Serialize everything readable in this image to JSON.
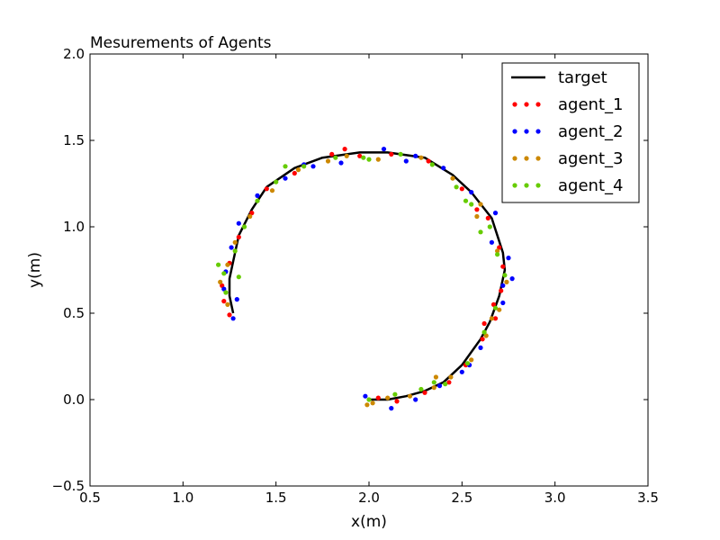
{
  "chart_data": {
    "type": "scatter",
    "title": "Mesurements of Agents",
    "xlabel": "x(m)",
    "ylabel": "y(m)",
    "xlim": [
      0.5,
      3.5
    ],
    "ylim": [
      -0.5,
      2.0
    ],
    "xticks": [
      "0.5",
      "1.0",
      "1.5",
      "2.0",
      "2.5",
      "3.0",
      "3.5"
    ],
    "yticks": [
      "−0.5",
      "0.0",
      "0.5",
      "1.0",
      "1.5",
      "2.0"
    ],
    "grid": false,
    "legend_position": "top-right",
    "series": [
      {
        "name": "target",
        "kind": "line",
        "color": "#000000",
        "points": [
          [
            2.0,
            0.0
          ],
          [
            2.1,
            0.0
          ],
          [
            2.2,
            0.02
          ],
          [
            2.3,
            0.05
          ],
          [
            2.4,
            0.1
          ],
          [
            2.5,
            0.2
          ],
          [
            2.6,
            0.35
          ],
          [
            2.65,
            0.45
          ],
          [
            2.7,
            0.6
          ],
          [
            2.73,
            0.75
          ],
          [
            2.72,
            0.85
          ],
          [
            2.66,
            1.05
          ],
          [
            2.55,
            1.2
          ],
          [
            2.45,
            1.3
          ],
          [
            2.3,
            1.4
          ],
          [
            2.1,
            1.43
          ],
          [
            1.95,
            1.43
          ],
          [
            1.75,
            1.4
          ],
          [
            1.6,
            1.34
          ],
          [
            1.45,
            1.23
          ],
          [
            1.37,
            1.1
          ],
          [
            1.3,
            0.95
          ],
          [
            1.27,
            0.8
          ],
          [
            1.25,
            0.7
          ],
          [
            1.25,
            0.6
          ],
          [
            1.27,
            0.5
          ]
        ]
      },
      {
        "name": "agent_1",
        "kind": "scatter",
        "color": "#ff0000",
        "points": [
          [
            2.05,
            0.01
          ],
          [
            2.15,
            -0.01
          ],
          [
            2.3,
            0.04
          ],
          [
            2.43,
            0.1
          ],
          [
            2.52,
            0.2
          ],
          [
            2.61,
            0.35
          ],
          [
            2.68,
            0.47
          ],
          [
            2.71,
            0.63
          ],
          [
            2.72,
            0.77
          ],
          [
            2.7,
            0.88
          ],
          [
            2.64,
            1.05
          ],
          [
            2.5,
            1.22
          ],
          [
            2.32,
            1.38
          ],
          [
            2.12,
            1.42
          ],
          [
            1.95,
            1.41
          ],
          [
            1.8,
            1.42
          ],
          [
            1.6,
            1.31
          ],
          [
            1.45,
            1.22
          ],
          [
            1.37,
            1.08
          ],
          [
            1.3,
            0.94
          ],
          [
            1.25,
            0.79
          ],
          [
            1.21,
            0.66
          ],
          [
            1.22,
            0.57
          ],
          [
            1.25,
            0.49
          ],
          [
            2.62,
            0.44
          ],
          [
            2.67,
            0.55
          ],
          [
            2.58,
            1.1
          ],
          [
            1.87,
            1.45
          ]
        ]
      },
      {
        "name": "agent_2",
        "kind": "scatter",
        "color": "#0000ff",
        "points": [
          [
            1.98,
            0.02
          ],
          [
            2.12,
            -0.05
          ],
          [
            2.25,
            0.0
          ],
          [
            2.38,
            0.08
          ],
          [
            2.5,
            0.16
          ],
          [
            2.6,
            0.3
          ],
          [
            2.72,
            0.56
          ],
          [
            2.77,
            0.7
          ],
          [
            2.75,
            0.82
          ],
          [
            2.68,
            1.08
          ],
          [
            2.55,
            1.2
          ],
          [
            2.4,
            1.34
          ],
          [
            2.2,
            1.38
          ],
          [
            2.08,
            1.45
          ],
          [
            1.85,
            1.37
          ],
          [
            1.7,
            1.35
          ],
          [
            1.55,
            1.28
          ],
          [
            1.4,
            1.18
          ],
          [
            1.3,
            1.02
          ],
          [
            1.26,
            0.88
          ],
          [
            1.23,
            0.74
          ],
          [
            1.22,
            0.64
          ],
          [
            1.27,
            0.47
          ],
          [
            1.29,
            0.58
          ],
          [
            2.66,
            0.91
          ],
          [
            2.25,
            1.41
          ],
          [
            1.65,
            1.36
          ],
          [
            2.54,
            0.2
          ],
          [
            2.72,
            0.66
          ]
        ]
      },
      {
        "name": "agent_3",
        "kind": "scatter",
        "color": "#cc8800",
        "points": [
          [
            1.99,
            -0.03
          ],
          [
            2.1,
            0.01
          ],
          [
            2.22,
            0.02
          ],
          [
            2.35,
            0.07
          ],
          [
            2.44,
            0.13
          ],
          [
            2.55,
            0.23
          ],
          [
            2.63,
            0.37
          ],
          [
            2.7,
            0.52
          ],
          [
            2.74,
            0.68
          ],
          [
            2.69,
            0.86
          ],
          [
            2.6,
            1.13
          ],
          [
            2.45,
            1.28
          ],
          [
            2.28,
            1.4
          ],
          [
            2.05,
            1.39
          ],
          [
            1.88,
            1.41
          ],
          [
            1.62,
            1.33
          ],
          [
            1.48,
            1.21
          ],
          [
            1.36,
            1.06
          ],
          [
            1.28,
            0.91
          ],
          [
            1.24,
            0.78
          ],
          [
            1.2,
            0.68
          ],
          [
            1.24,
            0.55
          ],
          [
            2.02,
            -0.02
          ],
          [
            2.36,
            0.13
          ],
          [
            2.66,
            0.47
          ],
          [
            2.58,
            1.06
          ],
          [
            1.78,
            1.38
          ]
        ]
      },
      {
        "name": "agent_4",
        "kind": "scatter",
        "color": "#66cc00",
        "points": [
          [
            2.0,
            0.0
          ],
          [
            2.14,
            0.03
          ],
          [
            2.28,
            0.06
          ],
          [
            2.41,
            0.09
          ],
          [
            2.53,
            0.21
          ],
          [
            2.62,
            0.39
          ],
          [
            2.68,
            0.53
          ],
          [
            2.73,
            0.72
          ],
          [
            2.69,
            0.84
          ],
          [
            2.65,
            1.0
          ],
          [
            2.55,
            1.13
          ],
          [
            2.47,
            1.23
          ],
          [
            2.34,
            1.36
          ],
          [
            2.17,
            1.42
          ],
          [
            2.0,
            1.39
          ],
          [
            1.82,
            1.4
          ],
          [
            1.65,
            1.35
          ],
          [
            1.5,
            1.26
          ],
          [
            1.4,
            1.15
          ],
          [
            1.33,
            1.0
          ],
          [
            1.28,
            0.86
          ],
          [
            1.22,
            0.73
          ],
          [
            1.19,
            0.78
          ],
          [
            1.23,
            0.62
          ],
          [
            1.3,
            0.71
          ],
          [
            1.55,
            1.35
          ],
          [
            2.6,
            0.97
          ],
          [
            2.35,
            0.1
          ],
          [
            2.52,
            1.15
          ],
          [
            1.97,
            1.4
          ]
        ]
      }
    ]
  }
}
